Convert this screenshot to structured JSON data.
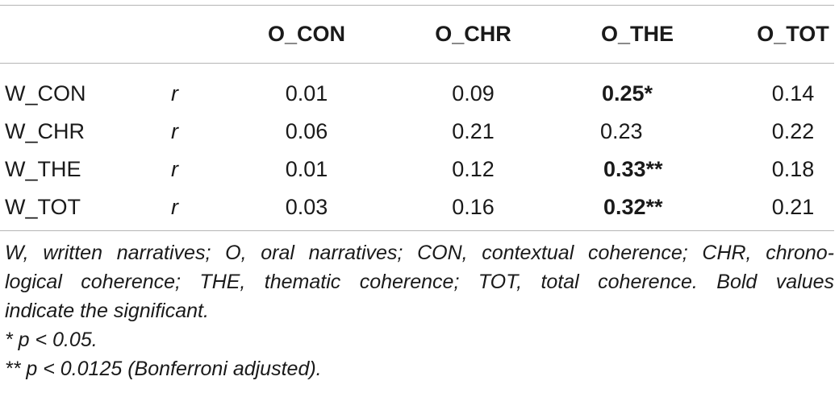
{
  "table": {
    "stat_label": "r",
    "headers": [
      "O_CON",
      "O_CHR",
      "O_THE",
      "O_TOT"
    ],
    "rows": [
      {
        "label": "W_CON",
        "values": [
          "0.01",
          "0.09",
          "0.25*",
          "0.14"
        ],
        "bold": [
          false,
          false,
          true,
          false
        ]
      },
      {
        "label": "W_CHR",
        "values": [
          "0.06",
          "0.21",
          "0.23",
          "0.22"
        ],
        "bold": [
          false,
          false,
          false,
          false
        ]
      },
      {
        "label": "W_THE",
        "values": [
          "0.01",
          "0.12",
          "0.33**",
          "0.18"
        ],
        "bold": [
          false,
          false,
          true,
          false
        ]
      },
      {
        "label": "W_TOT",
        "values": [
          "0.03",
          "0.16",
          "0.32**",
          "0.21"
        ],
        "bold": [
          false,
          false,
          true,
          false
        ]
      }
    ]
  },
  "notes": {
    "line1": "W, written narratives; O, oral narratives; CON, contextual coherence; CHR, chrono-",
    "line2": "logical coherence; THE, thematic coherence; TOT, total coherence. Bold values",
    "line3": "indicate the significant.",
    "footnote1": "* p < 0.05.",
    "footnote2": "** p < 0.0125 (Bonferroni adjusted)."
  }
}
